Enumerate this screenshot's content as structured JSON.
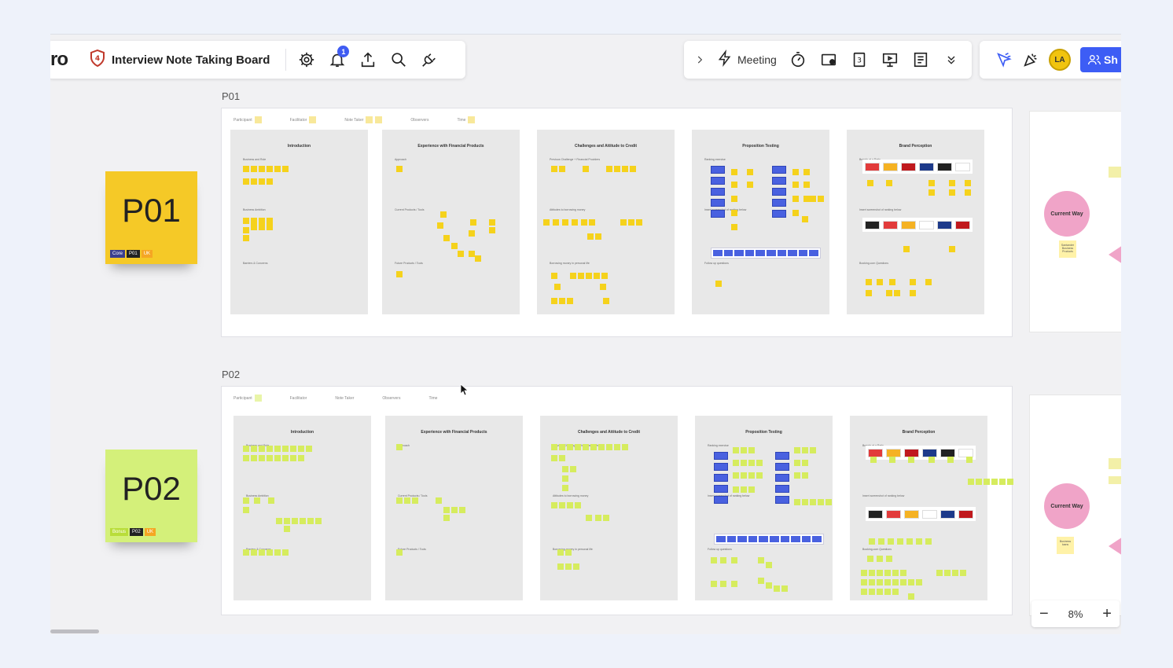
{
  "header": {
    "logo_text": "ro",
    "board_title": "Interview Note Taking Board",
    "notification_count": "1",
    "meeting_label": "Meeting",
    "avatar_initials": "LA",
    "share_label": "Sh"
  },
  "frames": [
    {
      "label": "P01",
      "note_color": "#f5d21c",
      "info": [
        "Participant",
        "Facilitator",
        "Note Taker",
        "Observers",
        "Time"
      ]
    },
    {
      "label": "P02",
      "note_color": "#d6ec5e",
      "info": [
        "Participant",
        "Facilitator",
        "Note Taker",
        "Observers",
        "Time"
      ]
    }
  ],
  "sections": [
    {
      "title": "Introduction",
      "subs": [
        "Business and Role",
        "Business Ambition",
        "Barriers & Concerns"
      ]
    },
    {
      "title": "Experience with Financial Products",
      "subs": [
        "Approach",
        "Current Products / Tools",
        "Future Products / Tools"
      ]
    },
    {
      "title": "Challenges and Attitude to Credit",
      "subs": [
        "Previous Challenge + Financial Providers",
        "Attitudes to borrowing money",
        "Borrowing money in personal life"
      ]
    },
    {
      "title": "Proposition Testing",
      "subs": [
        "Ranking exercise",
        "Insert screenshot of ranking below",
        "Follow up questions"
      ]
    },
    {
      "title": "Brand Perception",
      "subs": [
        "Brands at a Party",
        "Insert screenshot of ranking below",
        "Booking.com Questions"
      ]
    }
  ],
  "stickies": [
    {
      "text": "P01",
      "color": "#f5c927",
      "tags": [
        {
          "text": "Core",
          "color": "#3b3f8f"
        },
        {
          "text": "P01",
          "color": "#222222"
        },
        {
          "text": "UK",
          "color": "#f5a623"
        }
      ]
    },
    {
      "text": "P02",
      "color": "#d4f07a",
      "tags": [
        {
          "text": "Bonus",
          "color": "#b9dd3a"
        },
        {
          "text": "P02",
          "color": "#222222"
        },
        {
          "text": "UK",
          "color": "#f5a623"
        }
      ]
    }
  ],
  "right_panel": {
    "circle1": "Current Way",
    "note1": "Santander Business Products",
    "circle2": "Current Way",
    "note2": "Business loans"
  },
  "zoom": {
    "value": "8%",
    "minus": "−",
    "plus": "+"
  },
  "colors": {
    "accent": "#3d5df5",
    "yellow": "#f5d21c",
    "green": "#d6ec5e",
    "pink": "#f0a4c8",
    "blue": "#4961e0"
  }
}
